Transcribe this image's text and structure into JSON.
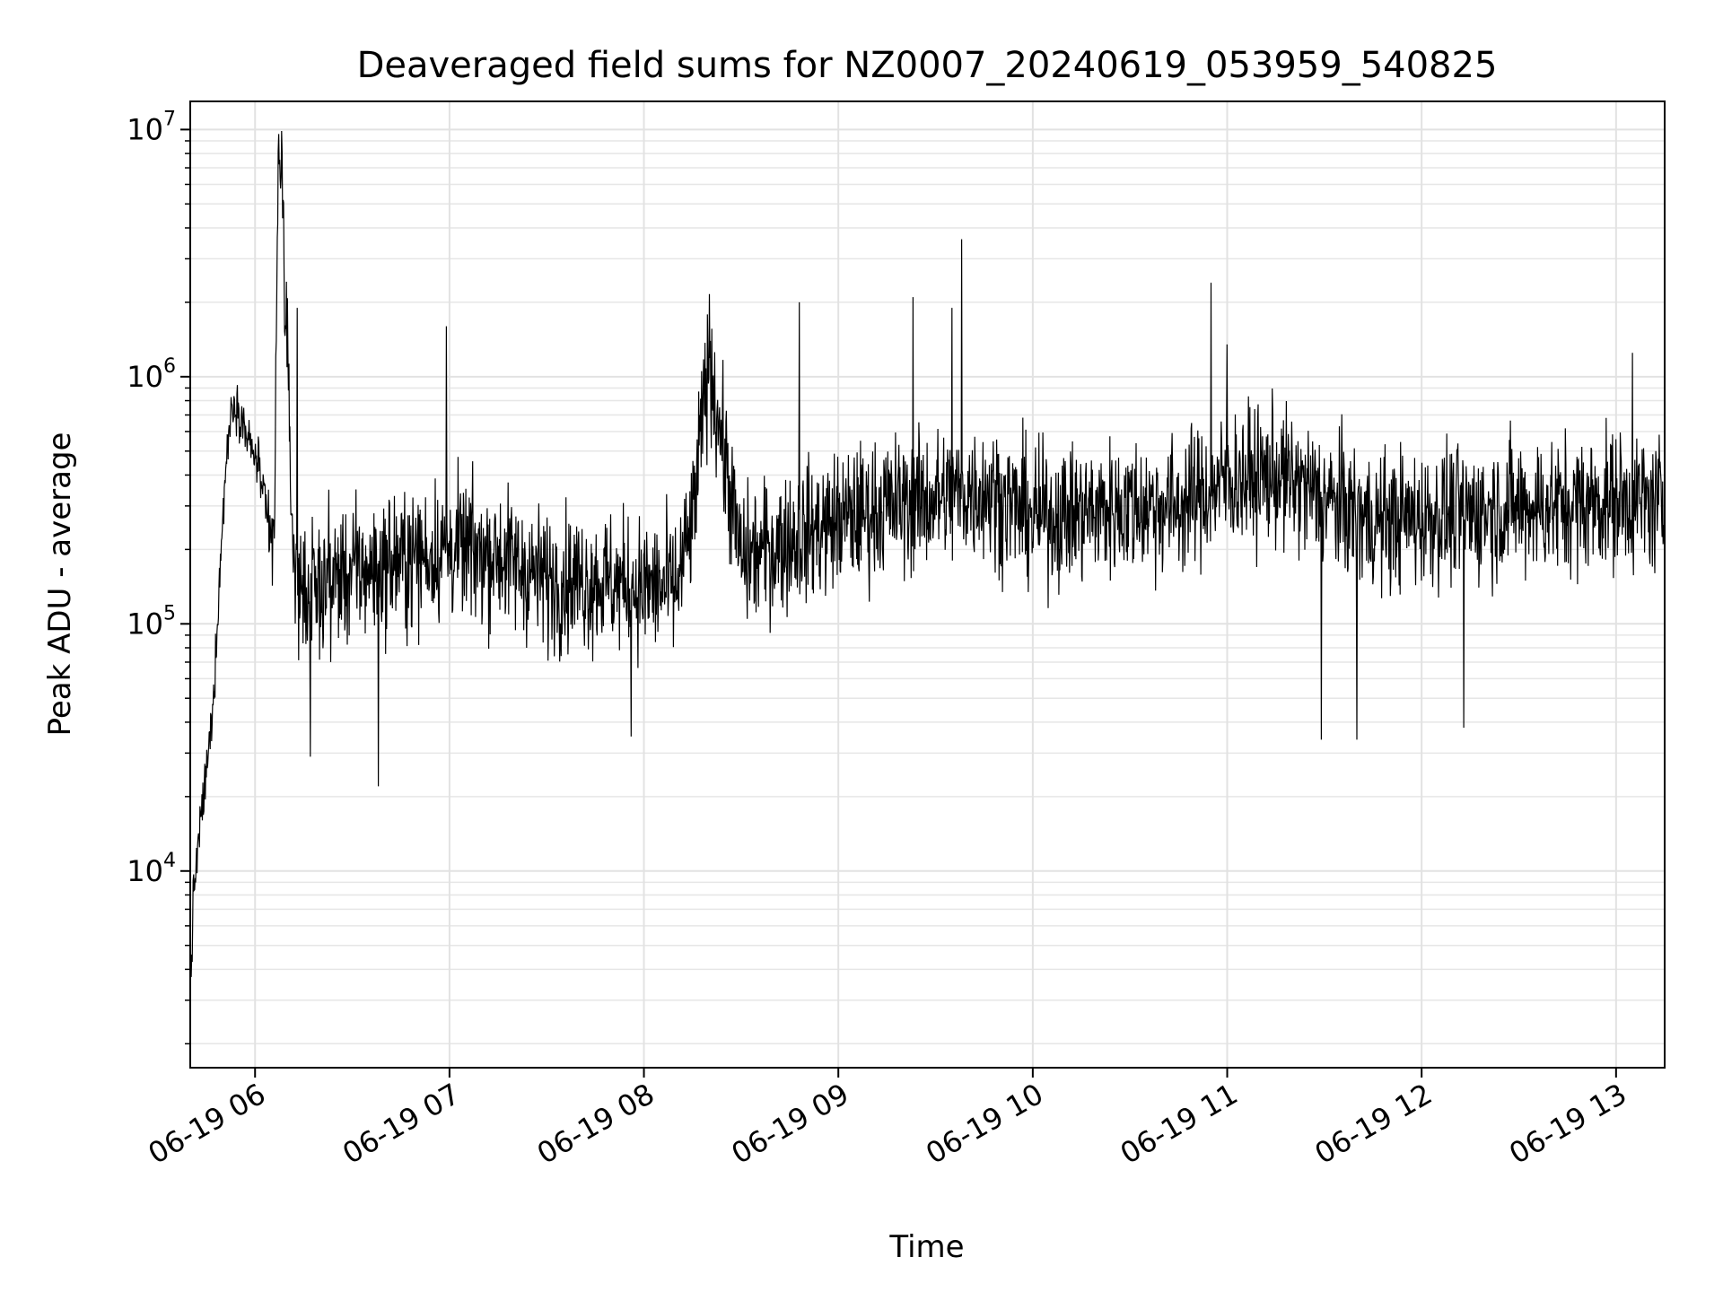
{
  "chart_data": {
    "type": "line",
    "title": "Deaveraged field sums for NZ0007_20240619_053959_540825",
    "xlabel": "Time",
    "ylabel": "Peak ADU - average",
    "y_scale": "log",
    "ylim": [
      1600,
      13000000
    ],
    "xlim": [
      "2024-06-19 05:40",
      "2024-06-19 13:15"
    ],
    "grid": true,
    "x_ticks": [
      "06-19 06",
      "06-19 07",
      "06-19 08",
      "06-19 09",
      "06-19 10",
      "06-19 11",
      "06-19 12",
      "06-19 13"
    ],
    "y_ticks": [
      {
        "base": "10",
        "exp": "4",
        "value": 10000
      },
      {
        "base": "10",
        "exp": "5",
        "value": 100000
      },
      {
        "base": "10",
        "exp": "6",
        "value": 1000000
      },
      {
        "base": "10",
        "exp": "7",
        "value": 10000000
      }
    ],
    "series": [
      {
        "color": "#000000",
        "x": [
          "2024-06-19 05:40",
          "2024-06-19 05:41",
          "2024-06-19 05:43",
          "2024-06-19 05:45",
          "2024-06-19 05:47",
          "2024-06-19 05:49",
          "2024-06-19 05:51",
          "2024-06-19 05:53",
          "2024-06-19 05:55",
          "2024-06-19 05:57",
          "2024-06-19 05:59",
          "2024-06-19 06:01",
          "2024-06-19 06:03",
          "2024-06-19 06:05",
          "2024-06-19 06:06",
          "2024-06-19 06:07",
          "2024-06-19 06:08",
          "2024-06-19 06:09",
          "2024-06-19 06:10",
          "2024-06-19 06:11",
          "2024-06-19 06:12",
          "2024-06-19 06:13",
          "2024-06-19 06:15",
          "2024-06-19 06:18",
          "2024-06-19 06:22",
          "2024-06-19 06:30",
          "2024-06-19 06:38",
          "2024-06-19 06:45",
          "2024-06-19 07:00",
          "2024-06-19 07:15",
          "2024-06-19 07:30",
          "2024-06-19 07:45",
          "2024-06-19 08:00",
          "2024-06-19 08:10",
          "2024-06-19 08:15",
          "2024-06-19 08:20",
          "2024-06-19 08:30",
          "2024-06-19 08:45",
          "2024-06-19 09:00",
          "2024-06-19 09:15",
          "2024-06-19 09:30",
          "2024-06-19 09:45",
          "2024-06-19 10:00",
          "2024-06-19 10:15",
          "2024-06-19 10:30",
          "2024-06-19 10:45",
          "2024-06-19 11:00",
          "2024-06-19 11:15",
          "2024-06-19 11:30",
          "2024-06-19 11:45",
          "2024-06-19 12:00",
          "2024-06-19 12:15",
          "2024-06-19 12:30",
          "2024-06-19 12:45",
          "2024-06-19 13:00",
          "2024-06-19 13:15"
        ],
        "y": [
          3000,
          8000,
          15000,
          25000,
          45000,
          150000,
          450000,
          800000,
          750000,
          600000,
          500000,
          450000,
          300000,
          200000,
          250000,
          5000000,
          9000000,
          3000000,
          1000000,
          400000,
          180000,
          150000,
          140000,
          130000,
          150000,
          160000,
          170000,
          180000,
          200000,
          190000,
          150000,
          150000,
          140000,
          140000,
          250000,
          1200000,
          180000,
          220000,
          260000,
          300000,
          320000,
          350000,
          270000,
          280000,
          300000,
          300000,
          380000,
          400000,
          320000,
          260000,
          270000,
          280000,
          300000,
          300000,
          320000,
          300000
        ],
        "spikes": [
          {
            "x": "2024-06-19 06:13",
            "y": 1900000
          },
          {
            "x": "2024-06-19 06:59",
            "y": 1600000
          },
          {
            "x": "2024-06-19 08:48",
            "y": 2000000
          },
          {
            "x": "2024-06-19 09:23",
            "y": 2100000
          },
          {
            "x": "2024-06-19 09:35",
            "y": 1900000
          },
          {
            "x": "2024-06-19 09:38",
            "y": 3600000
          },
          {
            "x": "2024-06-19 10:55",
            "y": 2400000
          },
          {
            "x": "2024-06-19 11:00",
            "y": 1350000
          },
          {
            "x": "2024-06-19 13:05",
            "y": 1250000
          },
          {
            "x": "2024-06-19 06:38",
            "y": 22000
          },
          {
            "x": "2024-06-19 06:17",
            "y": 29000
          },
          {
            "x": "2024-06-19 07:56",
            "y": 35000
          },
          {
            "x": "2024-06-19 11:29",
            "y": 34000
          },
          {
            "x": "2024-06-19 11:40",
            "y": 34000
          },
          {
            "x": "2024-06-19 12:13",
            "y": 38000
          }
        ]
      }
    ]
  }
}
